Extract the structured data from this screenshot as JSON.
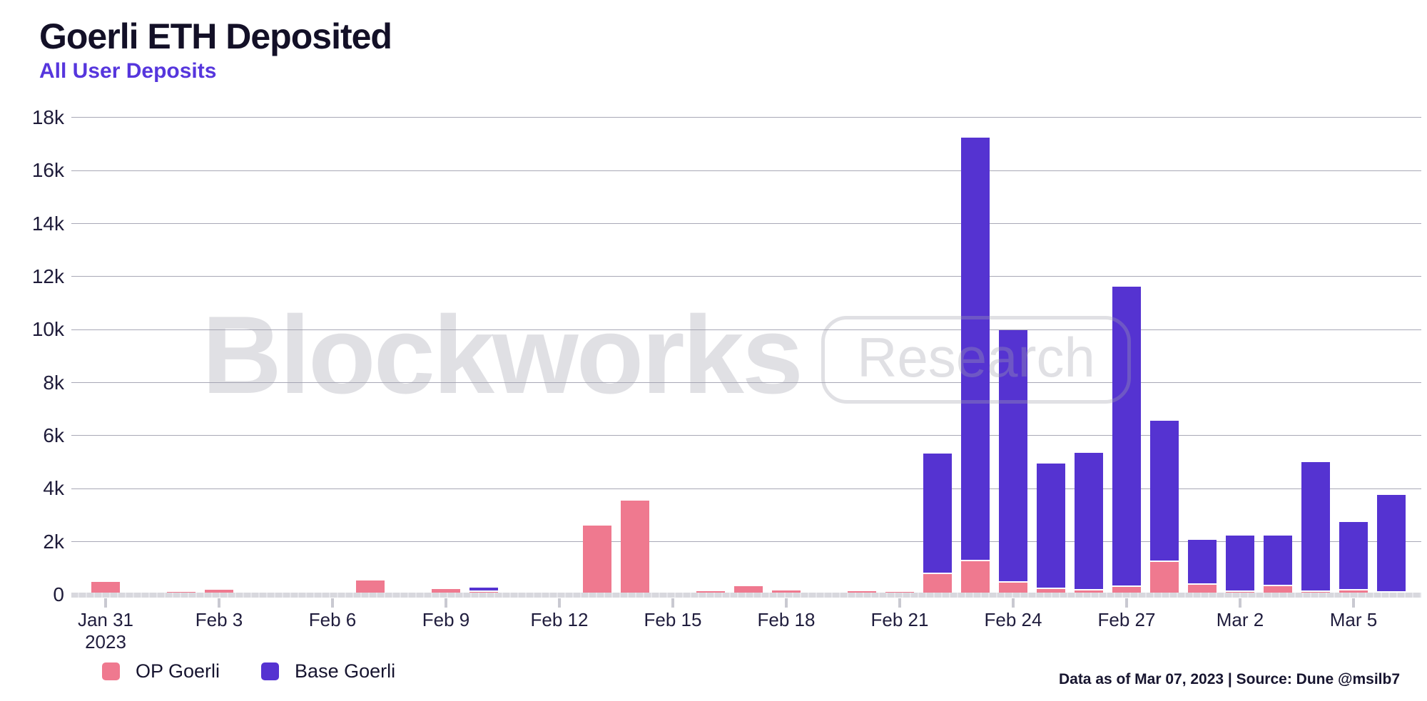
{
  "header": {
    "title": "Goerli ETH Deposited",
    "subtitle": "All User Deposits"
  },
  "watermark": {
    "brand": "Blockworks",
    "badge": "Research"
  },
  "legend": [
    {
      "label": "OP Goerli",
      "color": "#EF798F"
    },
    {
      "label": "Base Goerli",
      "color": "#5533D1"
    }
  ],
  "footer": {
    "text": "Data as of Mar 07, 2023 | Source: Dune @msilb7"
  },
  "chart_data": {
    "type": "bar",
    "stacked": true,
    "title": "Goerli ETH Deposited",
    "subtitle": "All User Deposits",
    "xlabel": "",
    "ylabel": "",
    "ylim": [
      0,
      18000
    ],
    "grid": true,
    "legend_position": "bottom-left",
    "x": [
      "Jan 31",
      "Feb 1",
      "Feb 2",
      "Feb 3",
      "Feb 4",
      "Feb 5",
      "Feb 6",
      "Feb 7",
      "Feb 8",
      "Feb 9",
      "Feb 10",
      "Feb 11",
      "Feb 12",
      "Feb 13",
      "Feb 14",
      "Feb 15",
      "Feb 16",
      "Feb 17",
      "Feb 18",
      "Feb 19",
      "Feb 20",
      "Feb 21",
      "Feb 22",
      "Feb 23",
      "Feb 24",
      "Feb 25",
      "Feb 26",
      "Feb 27",
      "Feb 28",
      "Mar 1",
      "Mar 2",
      "Mar 3",
      "Mar 4",
      "Mar 5",
      "Mar 6"
    ],
    "series": [
      {
        "name": "OP Goerli",
        "color": "#EF798F",
        "values": [
          480,
          30,
          110,
          190,
          20,
          30,
          80,
          550,
          90,
          210,
          100,
          90,
          30,
          2620,
          3560,
          80,
          130,
          330,
          150,
          60,
          140,
          120,
          780,
          1270,
          450,
          220,
          170,
          300,
          1230,
          370,
          100,
          310,
          120,
          150,
          80
        ]
      },
      {
        "name": "Base Goerli",
        "color": "#5533D1",
        "values": [
          0,
          0,
          0,
          0,
          0,
          0,
          0,
          0,
          0,
          0,
          120,
          0,
          0,
          0,
          0,
          0,
          0,
          0,
          0,
          0,
          0,
          0,
          4480,
          15920,
          9480,
          4680,
          5140,
          11260,
          5290,
          1650,
          2070,
          1880,
          4830,
          2540,
          3640
        ]
      }
    ],
    "ytick_values": [
      0,
      2000,
      4000,
      6000,
      8000,
      10000,
      12000,
      14000,
      16000,
      18000
    ],
    "ytick_labels": [
      "0",
      "2k",
      "4k",
      "6k",
      "8k",
      "10k",
      "12k",
      "14k",
      "16k",
      "18k"
    ],
    "xticks": [
      {
        "index": 0,
        "label": "Jan 31",
        "sub": "2023"
      },
      {
        "index": 3,
        "label": "Feb 3"
      },
      {
        "index": 6,
        "label": "Feb 6"
      },
      {
        "index": 9,
        "label": "Feb 9"
      },
      {
        "index": 12,
        "label": "Feb 12"
      },
      {
        "index": 15,
        "label": "Feb 15"
      },
      {
        "index": 18,
        "label": "Feb 18"
      },
      {
        "index": 21,
        "label": "Feb 21"
      },
      {
        "index": 24,
        "label": "Feb 24"
      },
      {
        "index": 27,
        "label": "Feb 27"
      },
      {
        "index": 30,
        "label": "Mar 2"
      },
      {
        "index": 33,
        "label": "Mar 5"
      }
    ]
  }
}
